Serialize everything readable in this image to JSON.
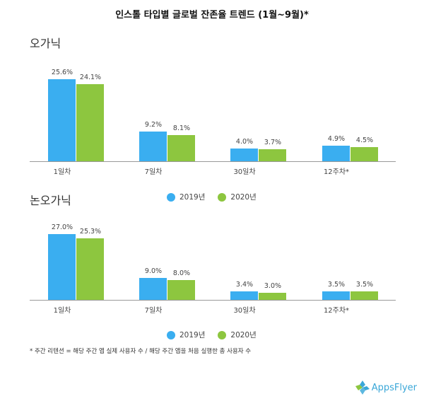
{
  "title": "인스톨 타입별 글로벌 잔존율 트렌드 (1월~9월)*",
  "colors": {
    "2019": "#3aaef0",
    "2020": "#8dc63f",
    "axis": "#999999"
  },
  "chart_data": [
    {
      "type": "bar",
      "subtitle": "오가닉",
      "categories": [
        "1일차",
        "7일차",
        "30일차",
        "12주차*"
      ],
      "series": [
        {
          "name": "2019년",
          "values": [
            25.6,
            9.2,
            4.0,
            4.9
          ],
          "labels": [
            "25.6%",
            "9.2%",
            "4.0%",
            "4.9%"
          ]
        },
        {
          "name": "2020년",
          "values": [
            24.1,
            8.1,
            3.7,
            4.5
          ],
          "labels": [
            "24.1%",
            "8.1%",
            "3.7%",
            "4.5%"
          ]
        }
      ],
      "legend": "bottom-center",
      "grid": false
    },
    {
      "type": "bar",
      "subtitle": "논오가닉",
      "categories": [
        "1일차",
        "7일차",
        "30일차",
        "12주차*"
      ],
      "series": [
        {
          "name": "2019년",
          "values": [
            27.0,
            9.0,
            3.4,
            3.5
          ],
          "labels": [
            "27.0%",
            "9.0%",
            "3.4%",
            "3.5%"
          ]
        },
        {
          "name": "2020년",
          "values": [
            25.3,
            8.0,
            3.0,
            3.5
          ],
          "labels": [
            "25.3%",
            "8.0%",
            "3.0%",
            "3.5%"
          ]
        }
      ],
      "legend": "bottom-center",
      "grid": false
    }
  ],
  "footnote": "* 주간 리텐션 = 해당 주간 앱 실제 사용자 수 / 해당 주간 앱을 처음 실행한 총 사용자 수",
  "logo": "AppsFlyer"
}
